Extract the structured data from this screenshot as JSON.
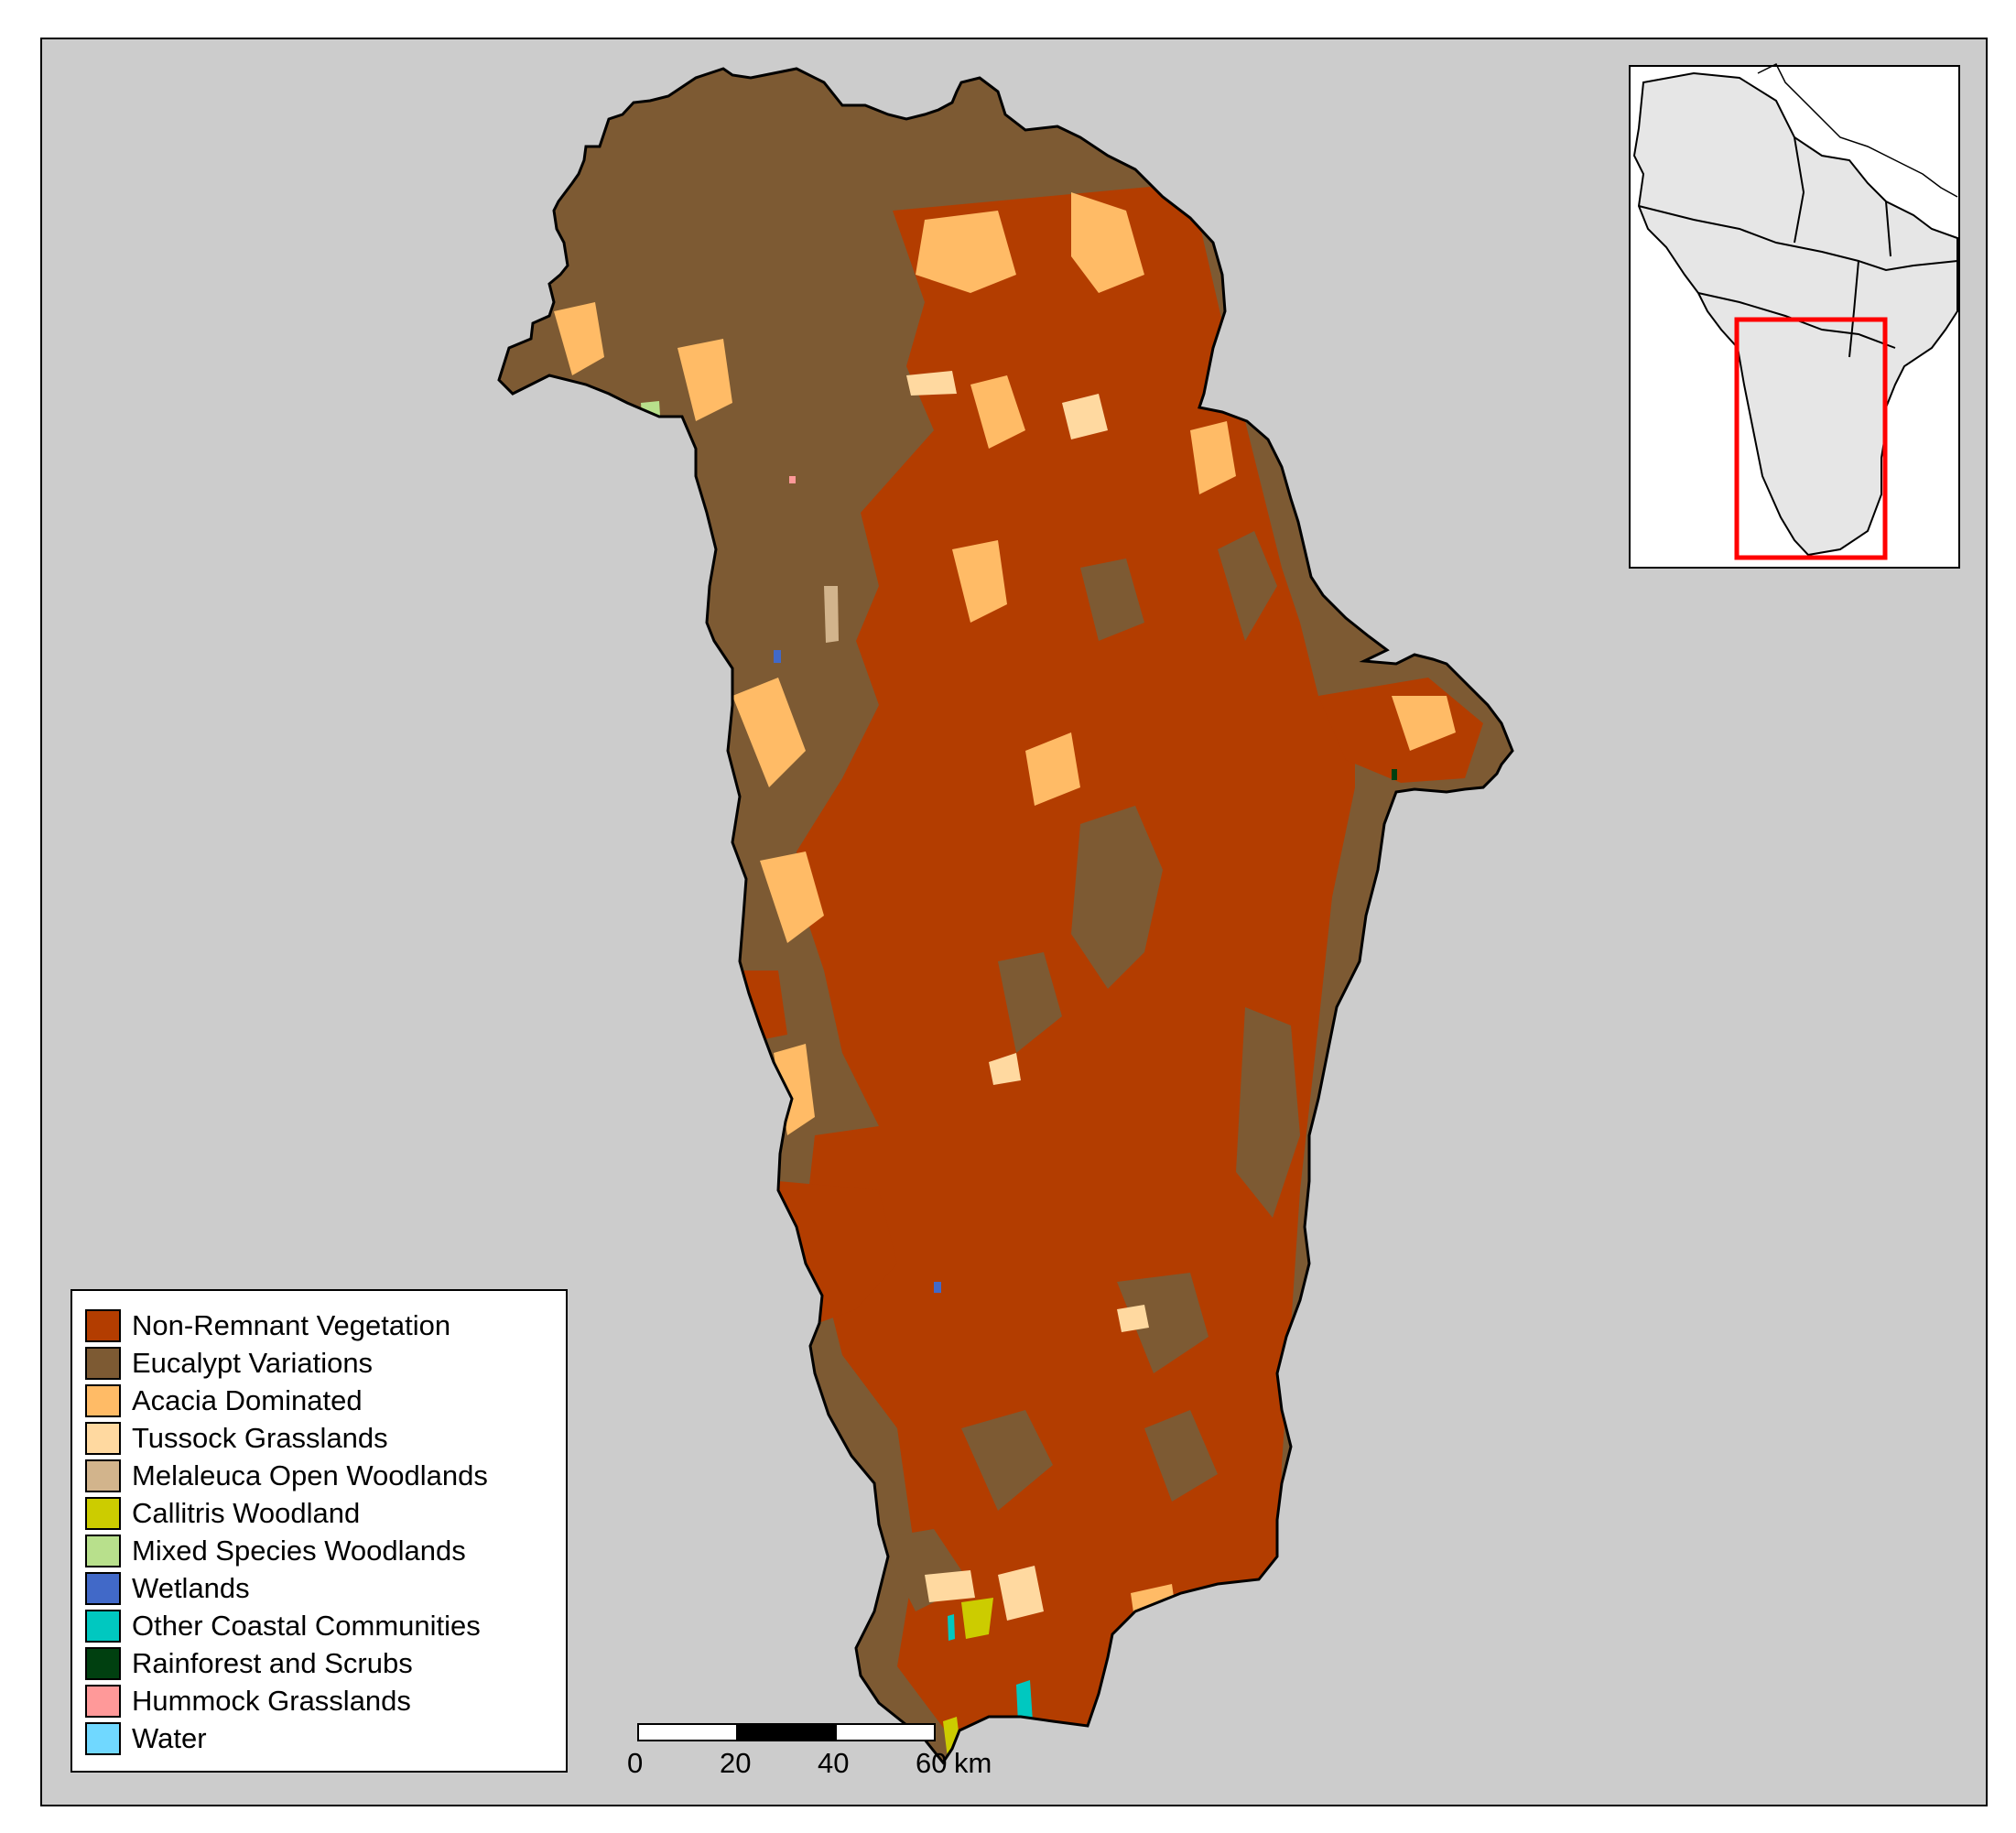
{
  "colors": {
    "ocean": "#cccccc",
    "non_remnant": "#b33d00",
    "eucalypt": "#7d5a33",
    "acacia": "#ffbb66",
    "tussock": "#ffd9a0",
    "inset_land": "#e6e6e6",
    "inset_box": "#ff0000"
  },
  "legend": {
    "items": [
      {
        "label": "Non-Remnant Vegetation",
        "color": "#b33d00"
      },
      {
        "label": "Eucalypt Variations",
        "color": "#7d5a33"
      },
      {
        "label": "Acacia Dominated",
        "color": "#ffbb66"
      },
      {
        "label": "Tussock Grasslands",
        "color": "#ffd9a0"
      },
      {
        "label": "Melaleuca Open Woodlands",
        "color": "#d2b48c"
      },
      {
        "label": "Callitris Woodland",
        "color": "#cccc00"
      },
      {
        "label": "Mixed Species Woodlands",
        "color": "#b8e08c"
      },
      {
        "label": "Wetlands",
        "color": "#4169c8"
      },
      {
        "label": "Other Coastal Communities",
        "color": "#00c8c0"
      },
      {
        "label": "Rainforest and Scrubs",
        "color": "#004010"
      },
      {
        "label": "Hummock Grasslands",
        "color": "#ff9999"
      },
      {
        "label": "Water",
        "color": "#70d8ff"
      }
    ]
  },
  "scalebar": {
    "ticks": [
      "0",
      "20",
      "40",
      "60"
    ],
    "unit": "km"
  },
  "inset": {
    "icon": "locator-map"
  }
}
